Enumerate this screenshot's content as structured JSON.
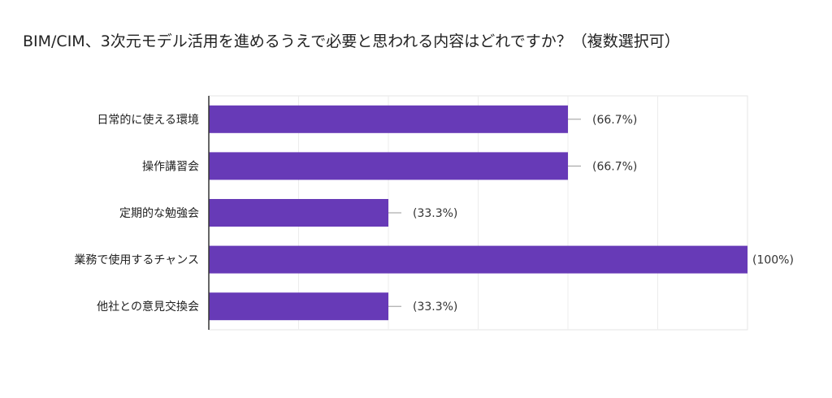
{
  "chart_data": {
    "type": "bar",
    "orientation": "horizontal",
    "title": "BIM/CIM、3次元モデル活用を進めるうえで必要と思われる内容はどれですか？（複数選択可）",
    "categories": [
      "日常的に使える環境",
      "操作講習会",
      "定期的な勉強会",
      "業務で使用するチャンス",
      "他社との意見交換会"
    ],
    "values": [
      2,
      2,
      1,
      3,
      1
    ],
    "percent_labels": [
      "(66.7%)",
      "(66.7%)",
      "(33.3%)",
      "(100%)",
      "(33.3%)"
    ],
    "xlim": [
      0,
      3
    ],
    "grid": true,
    "legend": "none",
    "bar_color": "#673ab7"
  }
}
